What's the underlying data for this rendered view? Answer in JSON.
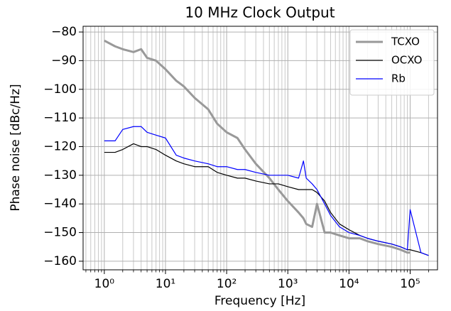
{
  "chart_data": {
    "type": "line",
    "title": "10 MHz Clock Output",
    "xlabel": "Frequency [Hz]",
    "ylabel": "Phase noise [dBc/Hz]",
    "log_x": true,
    "grid": true,
    "legend": "upper right",
    "xlim": [
      0.45,
      280000
    ],
    "ylim": [
      -163,
      -78
    ],
    "xticks": [
      {
        "value": 1,
        "label": "10⁰"
      },
      {
        "value": 10,
        "label": "10¹"
      },
      {
        "value": 100,
        "label": "10²"
      },
      {
        "value": 1000,
        "label": "10³"
      },
      {
        "value": 10000,
        "label": "10⁴"
      },
      {
        "value": 100000,
        "label": "10⁵"
      }
    ],
    "xminorticks": [
      0.5,
      0.6,
      0.7,
      0.8,
      0.9,
      2,
      3,
      4,
      5,
      6,
      7,
      8,
      9,
      20,
      30,
      40,
      50,
      60,
      70,
      80,
      90,
      200,
      300,
      400,
      500,
      600,
      700,
      800,
      900,
      2000,
      3000,
      4000,
      5000,
      6000,
      7000,
      8000,
      9000,
      20000,
      30000,
      40000,
      50000,
      60000,
      70000,
      80000,
      90000,
      200000
    ],
    "yticks": [
      {
        "value": -80,
        "label": "−80"
      },
      {
        "value": -90,
        "label": "−90"
      },
      {
        "value": -100,
        "label": "−100"
      },
      {
        "value": -110,
        "label": "−110"
      },
      {
        "value": -120,
        "label": "−120"
      },
      {
        "value": -130,
        "label": "−130"
      },
      {
        "value": -140,
        "label": "−140"
      },
      {
        "value": -150,
        "label": "−150"
      },
      {
        "value": -160,
        "label": "−160"
      }
    ],
    "x": [
      1,
      1.5,
      2,
      3,
      4,
      5,
      7,
      10,
      15,
      20,
      30,
      50,
      70,
      100,
      150,
      200,
      300,
      500,
      700,
      1000,
      1500,
      1800,
      2000,
      2500,
      3000,
      4000,
      5000,
      7000,
      10000,
      15000,
      20000,
      30000,
      50000,
      70000,
      90000,
      100000,
      150000,
      200000
    ],
    "series": [
      {
        "name": "TCXO",
        "color": "#999999",
        "width": 3,
        "values": [
          -83,
          -85,
          -86,
          -87,
          -86,
          -89,
          -90,
          -93,
          -97,
          -99,
          -103,
          -107,
          -112,
          -115,
          -117,
          -121,
          -126,
          -131,
          -135,
          -139,
          -143,
          -145,
          -147,
          -148,
          -140,
          -150,
          -150,
          -151,
          -152,
          -152,
          -153,
          -154,
          -155,
          -156,
          -157,
          -157,
          null,
          null
        ]
      },
      {
        "name": "OCXO",
        "color": "#000000",
        "width": 1.2,
        "values": [
          -122,
          -122,
          -121,
          -119,
          -120,
          -120,
          -121,
          -123,
          -125,
          -126,
          -127,
          -127,
          -129,
          -130,
          -131,
          -131,
          -132,
          -133,
          -133,
          -134,
          -135,
          -135,
          -135,
          -135,
          -136,
          -139,
          -143,
          -147,
          -149,
          -151,
          -152,
          -153,
          -154,
          -155,
          -156,
          -156,
          -157,
          -158
        ]
      },
      {
        "name": "Rb",
        "color": "#0000ff",
        "width": 1.2,
        "values": [
          -118,
          -118,
          -114,
          -113,
          -113,
          -115,
          -116,
          -117,
          -123,
          -124,
          -125,
          -126,
          -127,
          -127,
          -128,
          -128,
          -129,
          -130,
          -130,
          -130,
          -131,
          -125,
          -131,
          -133,
          -135,
          -140,
          -144,
          -148,
          -150,
          -151,
          -152,
          -153,
          -154,
          -155,
          -156,
          -142,
          -157,
          -158
        ]
      }
    ]
  }
}
